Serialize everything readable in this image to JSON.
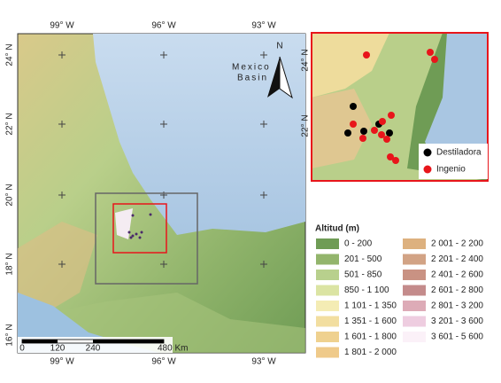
{
  "map": {
    "lon_labels": [
      "99° W",
      "96° W",
      "93° W"
    ],
    "lat_labels": [
      "24° N",
      "22° N",
      "20° N",
      "18° N",
      "16° N"
    ],
    "north": "N",
    "sea_label": [
      "Mexico",
      "Basin"
    ],
    "scale_bar": [
      "0",
      "120",
      "240",
      "480 Km"
    ]
  },
  "inset": {
    "lat_labels": [
      "24° N",
      "22° N"
    ],
    "legend": [
      {
        "label": "Destiladora",
        "color": "#000000"
      },
      {
        "label": "Ingenio",
        "color": "#e8151b"
      }
    ]
  },
  "legend": {
    "title": "Altitud (m)",
    "items": [
      {
        "label": "0 - 200",
        "color": "#6f9c55"
      },
      {
        "label": "201 - 500",
        "color": "#93b56c"
      },
      {
        "label": "501 - 850",
        "color": "#b8d08d"
      },
      {
        "label": "850 - 1 100",
        "color": "#dbe4a3"
      },
      {
        "label": "1 101 - 1 350",
        "color": "#f4ecb4"
      },
      {
        "label": "1 351 - 1 600",
        "color": "#f2dea0"
      },
      {
        "label": "1 601 - 1 800",
        "color": "#efd18f"
      },
      {
        "label": "1 801 - 2 000",
        "color": "#efca8a"
      },
      {
        "label": "2 001 - 2 200",
        "color": "#ddb17f"
      },
      {
        "label": "2 201 - 2 400",
        "color": "#d2a385"
      },
      {
        "label": "2 401 - 2 600",
        "color": "#c99283"
      },
      {
        "label": "2 601 - 2 800",
        "color": "#c48b8b"
      },
      {
        "label": "2 801 - 3 200",
        "color": "#ddabb7"
      },
      {
        "label": "3 201 - 3 600",
        "color": "#eecde0"
      },
      {
        "label": "3 601 - 5 600",
        "color": "#fbf1f8"
      }
    ]
  }
}
